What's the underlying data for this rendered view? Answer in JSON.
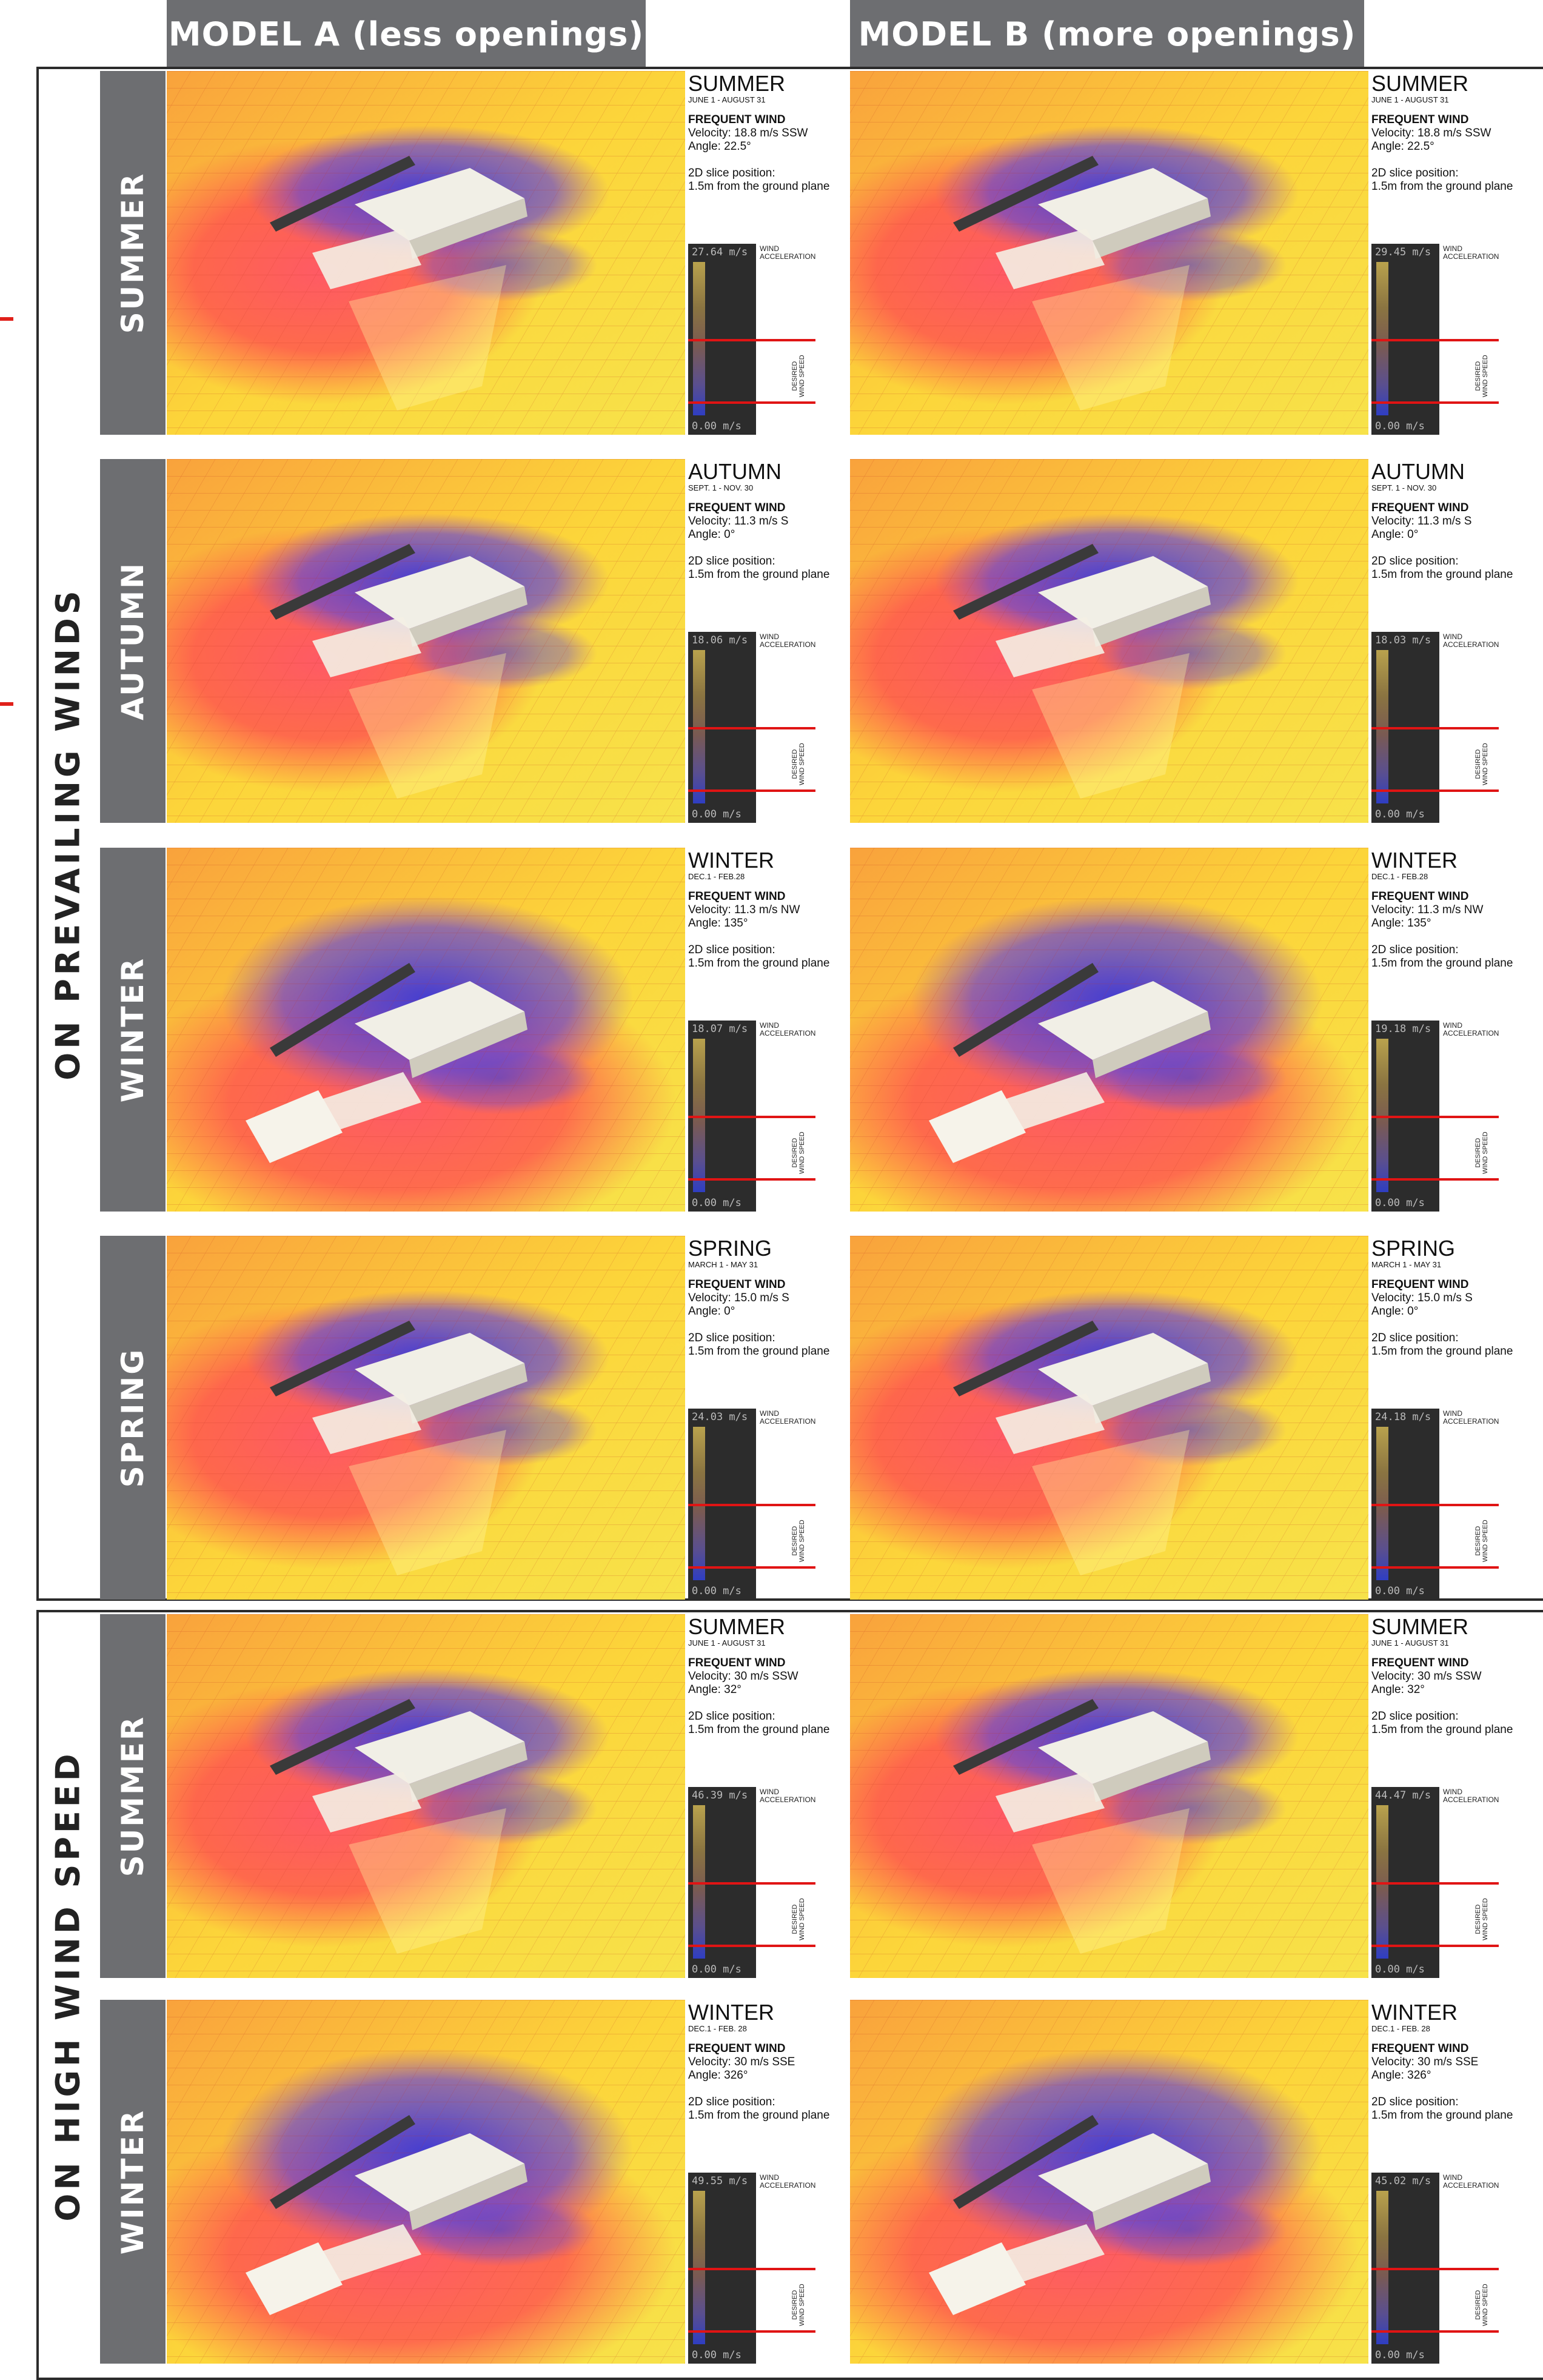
{
  "headers": {
    "model_a": "MODEL A  (less openings)",
    "model_b": "MODEL B  (more openings)"
  },
  "groups": {
    "prevailing": "ON  PREVAILING  WINDS",
    "high": "ON  HIGH  WIND  SPEED"
  },
  "legend": {
    "wind_accel": "WIND\nACCELERATION",
    "desired": "DESIRED\nWIND SPEED",
    "min": "0.00 m/s"
  },
  "info_labels": {
    "frequent_wind": "FREQUENT WIND",
    "slice_position": "2D slice position:",
    "slice_value": "1.5m from the ground plane"
  },
  "rows": [
    {
      "label": "SUMMER",
      "season": "SUMMER",
      "dates": "JUNE 1 - AUGUST 31",
      "a": {
        "velocity": "Velocity: 18.8 m/s SSW",
        "angle": "Angle: 22.5°",
        "max": "27.64 m/s"
      },
      "b": {
        "velocity": "Velocity: 18.8 m/s SSW",
        "angle": "Angle: 22.5°",
        "max": "29.45 m/s"
      }
    },
    {
      "label": "AUTUMN",
      "season": "AUTUMN",
      "dates": "SEPT. 1 - NOV. 30",
      "a": {
        "velocity": "Velocity: 11.3 m/s S",
        "angle": "Angle: 0°",
        "max": "18.06 m/s"
      },
      "b": {
        "velocity": "Velocity: 11.3 m/s S",
        "angle": "Angle: 0°",
        "max": "18.03 m/s"
      }
    },
    {
      "label": "WINTER",
      "season": "WINTER",
      "dates": "DEC.1 - FEB.28",
      "a": {
        "velocity": "Velocity: 11.3 m/s NW",
        "angle": "Angle: 135°",
        "max": "18.07 m/s"
      },
      "b": {
        "velocity": "Velocity: 11.3 m/s NW",
        "angle": "Angle: 135°",
        "max": "19.18 m/s"
      }
    },
    {
      "label": "SPRING",
      "season": "SPRING",
      "dates": "MARCH 1 - MAY 31",
      "a": {
        "velocity": "Velocity: 15.0 m/s S",
        "angle": "Angle: 0°",
        "max": "24.03 m/s"
      },
      "b": {
        "velocity": "Velocity: 15.0 m/s S",
        "angle": "Angle: 0°",
        "max": "24.18 m/s"
      }
    },
    {
      "label": "SUMMER",
      "season": "SUMMER",
      "dates": "JUNE 1 - AUGUST 31",
      "a": {
        "velocity": "Velocity: 30 m/s SSW",
        "angle": "Angle: 32°",
        "max": "46.39 m/s"
      },
      "b": {
        "velocity": "Velocity: 30 m/s SSW",
        "angle": "Angle: 32°",
        "max": "44.47 m/s"
      }
    },
    {
      "label": "WINTER",
      "season": "WINTER",
      "dates": "DEC.1 - FEB. 28",
      "a": {
        "velocity": "Velocity: 30 m/s SSE",
        "angle": "Angle: 326°",
        "max": "49.55 m/s"
      },
      "b": {
        "velocity": "Velocity: 30 m/s SSE",
        "angle": "Angle: 326°",
        "max": "45.02 m/s"
      }
    }
  ]
}
